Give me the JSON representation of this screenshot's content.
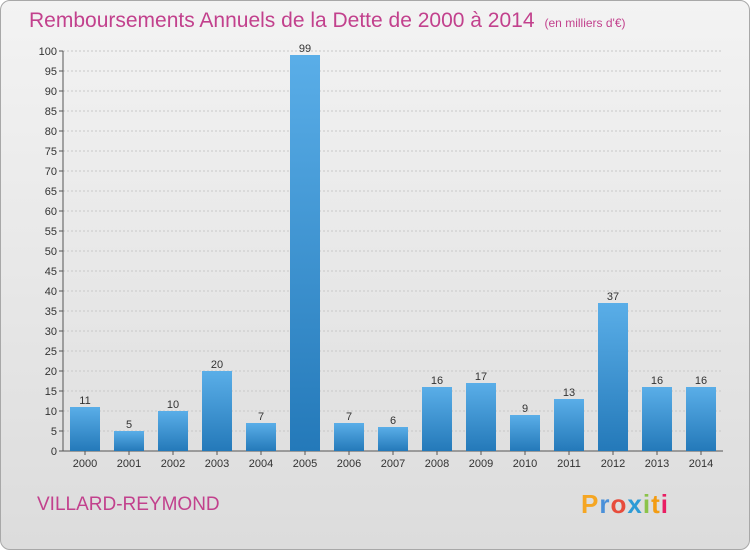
{
  "header": {
    "title": "Remboursements Annuels de la Dette de 2000 à 2014",
    "unit": "(en milliers d'€)"
  },
  "footer": {
    "commune": "VILLARD-REYMOND",
    "logo": [
      "P",
      "r",
      "o",
      "x",
      "i",
      "t",
      "i"
    ],
    "logo_colors": [
      "#f5a623",
      "#4a90d9",
      "#e74c3c",
      "#2d9bd6",
      "#8bc34a",
      "#f39c12",
      "#e91e63"
    ]
  },
  "colors": {
    "bar_top": "#5aaee8",
    "bar_bottom": "#2479b9",
    "title": "#c2418d"
  },
  "chart_data": {
    "type": "bar",
    "categories": [
      "2000",
      "2001",
      "2002",
      "2003",
      "2004",
      "2005",
      "2006",
      "2007",
      "2008",
      "2009",
      "2010",
      "2011",
      "2012",
      "2013",
      "2014"
    ],
    "values": [
      11,
      5,
      10,
      20,
      7,
      99,
      7,
      6,
      16,
      17,
      9,
      13,
      37,
      16,
      16
    ],
    "ylim": [
      0,
      100
    ],
    "yticks": [
      0,
      5,
      10,
      15,
      20,
      25,
      30,
      35,
      40,
      45,
      50,
      55,
      60,
      65,
      70,
      75,
      80,
      85,
      90,
      95,
      100
    ],
    "grid": true,
    "data_labels": true
  }
}
